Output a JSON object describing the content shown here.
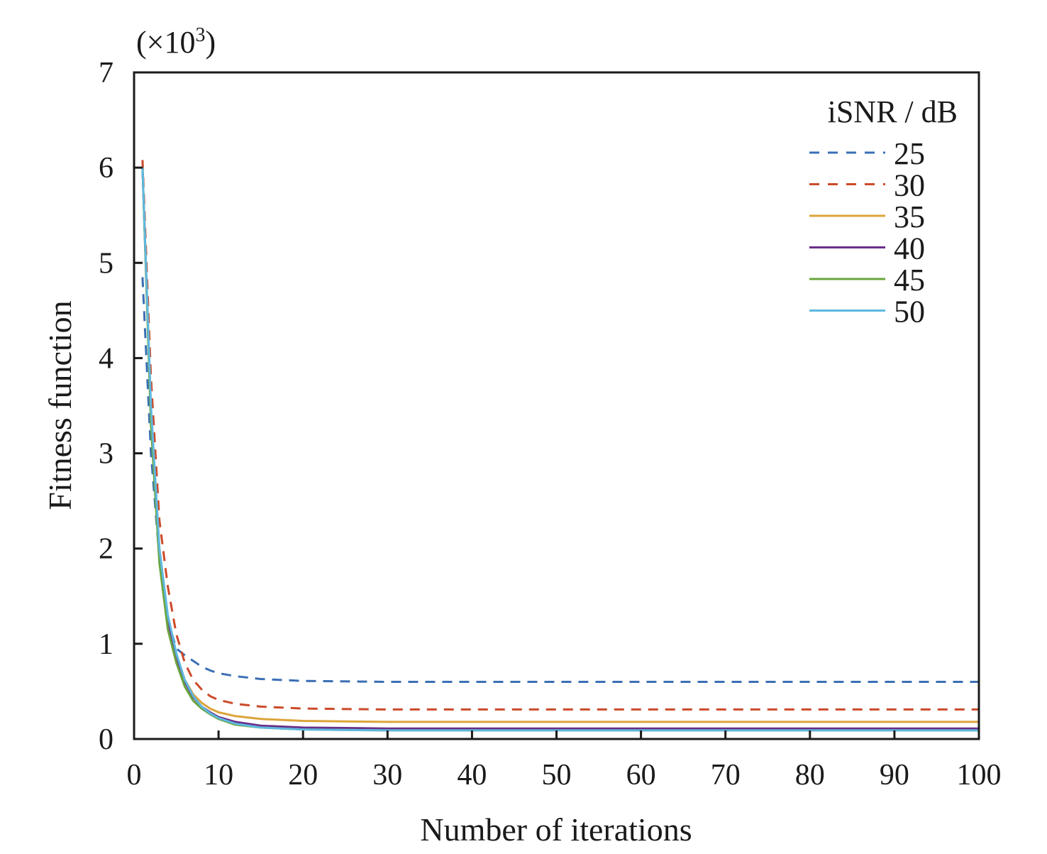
{
  "chart_data": {
    "type": "line",
    "title": "",
    "xlabel": "Number of iterations",
    "ylabel": "Fitness function",
    "y_multiplier": "(×10",
    "y_multiplier_exp": "3",
    "y_multiplier_close": ")",
    "xlim": [
      0,
      100
    ],
    "ylim": [
      0,
      7
    ],
    "xticks": [
      "0",
      "10",
      "20",
      "30",
      "40",
      "50",
      "60",
      "70",
      "80",
      "90",
      "100"
    ],
    "yticks": [
      "0",
      "1",
      "2",
      "3",
      "4",
      "5",
      "6",
      "7"
    ],
    "grid": false,
    "legend_title": "iSNR / dB",
    "legend_position": "top-right",
    "x": [
      1,
      2,
      3,
      4,
      5,
      6,
      7,
      8,
      9,
      10,
      12,
      15,
      20,
      30,
      40,
      50,
      60,
      70,
      80,
      90,
      100
    ],
    "series": [
      {
        "name": "25",
        "color": "#3b6fb5",
        "dashed": true,
        "values": [
          4.85,
          3.0,
          1.9,
          1.25,
          0.95,
          0.88,
          0.82,
          0.76,
          0.72,
          0.69,
          0.66,
          0.63,
          0.61,
          0.6,
          0.6,
          0.6,
          0.6,
          0.6,
          0.6,
          0.6,
          0.6
        ]
      },
      {
        "name": "30",
        "color": "#cc4a2a",
        "dashed": true,
        "values": [
          6.08,
          3.8,
          2.3,
          1.6,
          1.1,
          0.8,
          0.62,
          0.52,
          0.45,
          0.41,
          0.37,
          0.34,
          0.32,
          0.31,
          0.31,
          0.31,
          0.31,
          0.31,
          0.31,
          0.31,
          0.31
        ]
      },
      {
        "name": "35",
        "color": "#dca43a",
        "dashed": false,
        "values": [
          6.0,
          3.45,
          2.0,
          1.28,
          0.88,
          0.62,
          0.47,
          0.38,
          0.32,
          0.28,
          0.24,
          0.21,
          0.19,
          0.18,
          0.18,
          0.18,
          0.18,
          0.18,
          0.18,
          0.18,
          0.18
        ]
      },
      {
        "name": "40",
        "color": "#6a2f8a",
        "dashed": false,
        "values": [
          6.0,
          3.4,
          1.95,
          1.25,
          0.85,
          0.6,
          0.44,
          0.34,
          0.28,
          0.23,
          0.18,
          0.14,
          0.12,
          0.11,
          0.11,
          0.11,
          0.11,
          0.11,
          0.11,
          0.11,
          0.11
        ]
      },
      {
        "name": "45",
        "color": "#6aa53e",
        "dashed": false,
        "values": [
          6.0,
          3.3,
          1.85,
          1.15,
          0.8,
          0.55,
          0.4,
          0.32,
          0.26,
          0.21,
          0.15,
          0.12,
          0.1,
          0.09,
          0.09,
          0.09,
          0.09,
          0.09,
          0.09,
          0.09,
          0.09
        ]
      },
      {
        "name": "50",
        "color": "#5fb8e0",
        "dashed": false,
        "values": [
          6.0,
          3.5,
          2.0,
          1.3,
          0.9,
          0.62,
          0.45,
          0.34,
          0.27,
          0.22,
          0.16,
          0.12,
          0.1,
          0.09,
          0.09,
          0.09,
          0.09,
          0.09,
          0.09,
          0.09,
          0.09
        ]
      }
    ]
  }
}
